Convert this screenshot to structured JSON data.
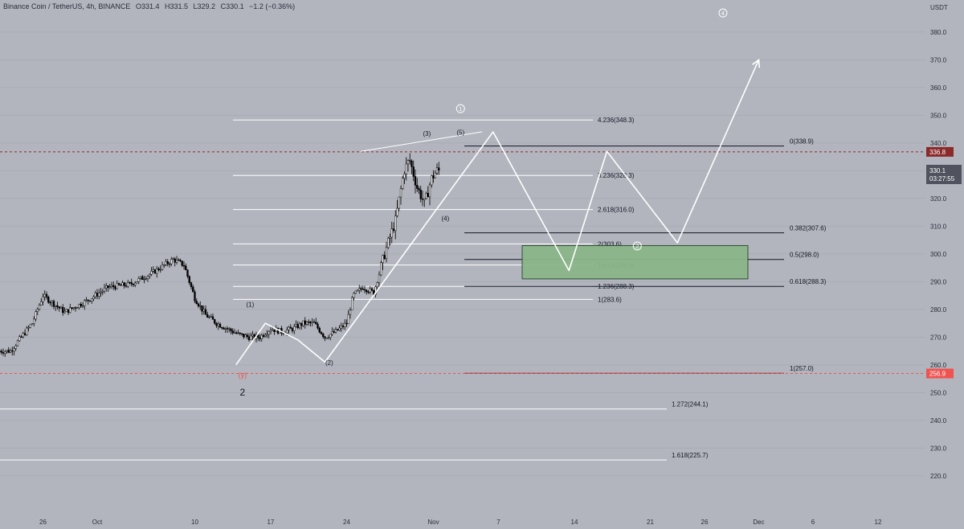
{
  "header": {
    "symbol": "Binance Coin / TetherUS, 4h, BINANCE",
    "open": "O331.4",
    "high": "H331.5",
    "low": "L329.2",
    "close": "C330.1",
    "change": "−1.2 (−0.36%)"
  },
  "price_axis": {
    "unit": "USDT",
    "last_price": "330.1",
    "countdown": "03:27:55",
    "level_high": "336.8",
    "level_low": "256.9"
  },
  "colors": {
    "background": "#b2b5be",
    "candle": "#000000",
    "projection": "#ffffff",
    "zone_fill": "#8ab68a",
    "zone_border": "#2a4a2a",
    "marker_red": "#8b2a2a",
    "marker_bright_red": "#ef5350",
    "axis_badge": "#50535e"
  },
  "chart_data": {
    "type": "candlestick",
    "title": "",
    "ylim": [
      214,
      386
    ],
    "y_ticks": [
      "380.0",
      "370.0",
      "360.0",
      "350.0",
      "340.0",
      "330.0",
      "320.0",
      "310.0",
      "300.0",
      "290.0",
      "280.0",
      "270.0",
      "260.0",
      "250.0",
      "240.0",
      "230.0",
      "220.0"
    ],
    "x_ticks": [
      "26",
      "Oct",
      "10",
      "17",
      "24",
      "Nov",
      "7",
      "14",
      "21",
      "26",
      "Dec",
      "6",
      "12"
    ],
    "x_tick_days": [
      -5,
      0,
      9,
      16,
      23,
      31,
      37,
      44,
      51,
      56,
      61,
      66,
      72
    ],
    "price_anchors": [
      [
        -8,
        265
      ],
      [
        -6,
        275
      ],
      [
        -5,
        285
      ],
      [
        -3,
        279
      ],
      [
        -1,
        283
      ],
      [
        1,
        288
      ],
      [
        3,
        289
      ],
      [
        5,
        293
      ],
      [
        7,
        298
      ],
      [
        8,
        296
      ],
      [
        9,
        284
      ],
      [
        10,
        278
      ],
      [
        11,
        275
      ],
      [
        12,
        273
      ],
      [
        13,
        271
      ],
      [
        14,
        270
      ],
      [
        15,
        270
      ],
      [
        16,
        273
      ],
      [
        17,
        272
      ],
      [
        18,
        273
      ],
      [
        19,
        275
      ],
      [
        20,
        275
      ],
      [
        21,
        270
      ],
      [
        22,
        272
      ],
      [
        23,
        275
      ],
      [
        23.6,
        285
      ],
      [
        24.5,
        288
      ],
      [
        25.5,
        286
      ],
      [
        26.5,
        300
      ],
      [
        27.5,
        312
      ],
      [
        28.3,
        330
      ],
      [
        28.8,
        334
      ],
      [
        29.5,
        324
      ],
      [
        30.2,
        318
      ],
      [
        30.8,
        327
      ],
      [
        31.3,
        330
      ],
      [
        31.6,
        330
      ]
    ],
    "projection_path": [
      [
        12.8,
        260
      ],
      [
        15.5,
        275
      ],
      [
        18.5,
        269
      ],
      [
        21,
        261
      ],
      [
        36.5,
        344
      ],
      [
        43.5,
        294
      ],
      [
        47,
        337
      ],
      [
        53.5,
        304
      ],
      [
        61,
        370
      ]
    ],
    "wedge_line": [
      [
        24.3,
        337
      ],
      [
        35.5,
        344
      ]
    ],
    "fib_levels_left": [
      {
        "label": "4.236(348.3)",
        "value": 348.3
      },
      {
        "label": "3.236(328.3)",
        "value": 328.3
      },
      {
        "label": "2.618(316.0)",
        "value": 316.0
      },
      {
        "label": "2(303.6)",
        "value": 303.6
      },
      {
        "label": "1.618(296.0)",
        "value": 296.0
      },
      {
        "label": "1.236(288.3)",
        "value": 288.3
      },
      {
        "label": "1(283.6)",
        "value": 283.6
      }
    ],
    "fib_levels_right": [
      {
        "label": "0(338.9)",
        "value": 338.9
      },
      {
        "label": "0.382(307.6)",
        "value": 307.6
      },
      {
        "label": "0.5(298.0)",
        "value": 298.0
      },
      {
        "label": "0.618(288.3)",
        "value": 288.3
      },
      {
        "label": "1(257.0)",
        "value": 257.0
      }
    ],
    "fib_levels_wide": [
      {
        "label": "1.272(244.1)",
        "value": 244.1
      },
      {
        "label": "1.618(225.7)",
        "value": 225.7
      }
    ],
    "zone": {
      "low": 291,
      "high": 303
    },
    "wave_labels": [
      {
        "text": "(3)",
        "day": 30.4,
        "price": 342.5
      },
      {
        "text": "(5)",
        "day": 33.5,
        "price": 343
      },
      {
        "text": "(4)",
        "day": 32.1,
        "price": 312
      },
      {
        "text": "(2)",
        "day": 21.4,
        "price": 260
      },
      {
        "text": "(1)",
        "day": 14.1,
        "price": 281
      },
      {
        "text": "(y)",
        "day": 13.4,
        "price": 255.4
      },
      {
        "text": "2",
        "day": 13.4,
        "price": 249
      },
      {
        "text": "1",
        "day": 33.5,
        "price": 351.5
      },
      {
        "text": "2",
        "day": 49.8,
        "price": 302
      },
      {
        "text": "4",
        "day": 57.7,
        "price": 386
      }
    ]
  }
}
